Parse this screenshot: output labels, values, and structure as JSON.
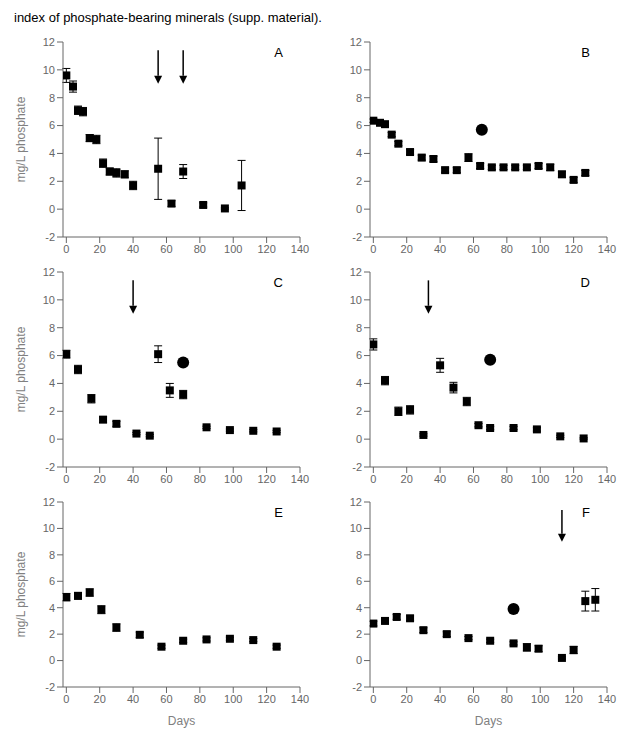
{
  "title": "index of phosphate-bearing minerals (supp. material).",
  "chart_data": [
    {
      "type": "scatter",
      "title": "A",
      "x": [
        0,
        4,
        7,
        10,
        14,
        18,
        22,
        26,
        30,
        35,
        40,
        55,
        63,
        70,
        82,
        95,
        105
      ],
      "values": [
        9.6,
        8.8,
        7.1,
        7.0,
        5.1,
        5.0,
        3.3,
        2.7,
        2.6,
        2.5,
        1.7,
        2.9,
        0.4,
        2.7,
        0.3,
        0.05,
        1.7
      ],
      "yerr": [
        0.5,
        0.4,
        0.3,
        0.3,
        0.25,
        0.3,
        0.3,
        0.25,
        0.3,
        0.25,
        0.3,
        2.2,
        0.2,
        0.5,
        0.15,
        0.05,
        1.8
      ],
      "arrows": [
        {
          "x": 55,
          "y_from": 11.4,
          "y_to": 9
        },
        {
          "x": 70,
          "y_from": 11.4,
          "y_to": 9
        }
      ],
      "xlim": [
        -2,
        140
      ],
      "xticks": [
        0,
        20,
        40,
        60,
        80,
        100,
        120,
        140
      ],
      "ylim": [
        -2,
        12
      ],
      "yticks": [
        -2,
        0,
        2,
        4,
        6,
        8,
        10,
        12
      ],
      "ylabel": "mg/L phosphate",
      "marker": "square",
      "color": "black",
      "grid": false
    },
    {
      "type": "scatter",
      "title": "B",
      "x": [
        0,
        4,
        7,
        11,
        15,
        22,
        29,
        36,
        43,
        50,
        57,
        64,
        71,
        78,
        85,
        92,
        99,
        106,
        113,
        120,
        127
      ],
      "values": [
        6.35,
        6.2,
        6.1,
        5.35,
        4.7,
        4.1,
        3.7,
        3.6,
        2.8,
        2.8,
        3.7,
        3.1,
        3.0,
        3.0,
        3.0,
        3.0,
        3.1,
        3.0,
        2.5,
        2.1,
        2.6
      ],
      "yerr": [
        0.12,
        0.12,
        0.12,
        0.15,
        0.15,
        0.18,
        0.18,
        0.2,
        0.15,
        0.18,
        0.28,
        0.18,
        0.15,
        0.15,
        0.15,
        0.15,
        0.18,
        0.22,
        0.22,
        0.18,
        0.18
      ],
      "dot": {
        "x": 65,
        "y": 5.7
      },
      "xlim": [
        -2,
        140
      ],
      "xticks": [
        0,
        20,
        40,
        60,
        80,
        100,
        120,
        140
      ],
      "ylim": [
        -2,
        12
      ],
      "yticks": [
        -2,
        0,
        2,
        4,
        6,
        8,
        10,
        12
      ],
      "marker": "square",
      "color": "black",
      "grid": false
    },
    {
      "type": "scatter",
      "title": "C",
      "x": [
        0,
        7,
        15,
        22,
        30,
        42,
        50,
        55,
        62,
        70,
        84,
        98,
        112,
        126
      ],
      "values": [
        6.1,
        5.0,
        2.9,
        1.4,
        1.1,
        0.4,
        0.25,
        6.1,
        3.5,
        3.2,
        0.85,
        0.65,
        0.6,
        0.55
      ],
      "yerr": [
        0.28,
        0.3,
        0.3,
        0.2,
        0.18,
        0.08,
        0.08,
        0.6,
        0.5,
        0.3,
        0.08,
        0.08,
        0.08,
        0.08
      ],
      "dot": {
        "x": 70,
        "y": 5.5
      },
      "arrows": [
        {
          "x": 40,
          "y_from": 11.4,
          "y_to": 9
        }
      ],
      "xlim": [
        -2,
        140
      ],
      "xticks": [
        0,
        20,
        40,
        60,
        80,
        100,
        120,
        140
      ],
      "ylim": [
        -2,
        12
      ],
      "yticks": [
        -2,
        0,
        2,
        4,
        6,
        8,
        10,
        12
      ],
      "ylabel": "mg/L phosphate",
      "marker": "square",
      "color": "black",
      "grid": false
    },
    {
      "type": "scatter",
      "title": "D",
      "x": [
        0,
        7,
        15,
        22,
        30,
        40,
        48,
        56,
        63,
        70,
        84,
        98,
        112,
        126
      ],
      "values": [
        6.8,
        4.2,
        2.0,
        2.1,
        0.3,
        5.3,
        3.7,
        2.7,
        1.0,
        0.8,
        0.8,
        0.7,
        0.2,
        0.05
      ],
      "yerr": [
        0.4,
        0.3,
        0.3,
        0.3,
        0.08,
        0.5,
        0.38,
        0.3,
        0.12,
        0.12,
        0.12,
        0.12,
        0.08,
        0.05
      ],
      "dot": {
        "x": 70,
        "y": 5.7
      },
      "arrows": [
        {
          "x": 33,
          "y_from": 11.4,
          "y_to": 9
        }
      ],
      "xlim": [
        -2,
        140
      ],
      "xticks": [
        0,
        20,
        40,
        60,
        80,
        100,
        120,
        140
      ],
      "ylim": [
        -2,
        12
      ],
      "yticks": [
        -2,
        0,
        2,
        4,
        6,
        8,
        10,
        12
      ],
      "marker": "square",
      "color": "black",
      "grid": false
    },
    {
      "type": "scatter",
      "title": "E",
      "x": [
        0,
        7,
        14,
        21,
        30,
        44,
        57,
        70,
        84,
        98,
        112,
        126
      ],
      "values": [
        4.8,
        4.9,
        5.15,
        3.85,
        2.5,
        1.95,
        1.05,
        1.5,
        1.6,
        1.65,
        1.55,
        1.05
      ],
      "yerr": [
        0.28,
        0.25,
        0.28,
        0.3,
        0.28,
        0.2,
        0.12,
        0.12,
        0.12,
        0.12,
        0.12,
        0.12
      ],
      "xlim": [
        -2,
        140
      ],
      "xticks": [
        0,
        20,
        40,
        60,
        80,
        100,
        120,
        140
      ],
      "ylim": [
        -2,
        12
      ],
      "yticks": [
        -2,
        0,
        2,
        4,
        6,
        8,
        10,
        12
      ],
      "ylabel": "mg/L phosphate",
      "xlabel": "Days",
      "marker": "square",
      "color": "black",
      "grid": false
    },
    {
      "type": "scatter",
      "title": "F",
      "x": [
        0,
        7,
        14,
        22,
        30,
        44,
        57,
        70,
        84,
        92,
        99,
        113,
        120,
        127,
        133
      ],
      "values": [
        2.8,
        3.0,
        3.3,
        3.2,
        2.3,
        2.0,
        1.7,
        1.5,
        1.3,
        1.0,
        0.9,
        0.2,
        0.8,
        4.5,
        4.6
      ],
      "yerr": [
        0.18,
        0.18,
        0.18,
        0.18,
        0.18,
        0.18,
        0.12,
        0.12,
        0.12,
        0.28,
        0.22,
        0.08,
        0.28,
        0.75,
        0.85
      ],
      "dot": {
        "x": 84,
        "y": 3.9
      },
      "arrows": [
        {
          "x": 113,
          "y_from": 11.4,
          "y_to": 9
        }
      ],
      "xlim": [
        -2,
        140
      ],
      "xticks": [
        0,
        20,
        40,
        60,
        80,
        100,
        120,
        140
      ],
      "ylim": [
        -2,
        12
      ],
      "yticks": [
        -2,
        0,
        2,
        4,
        6,
        8,
        10,
        12
      ],
      "xlabel": "Days",
      "marker": "square",
      "color": "black",
      "grid": false
    }
  ]
}
